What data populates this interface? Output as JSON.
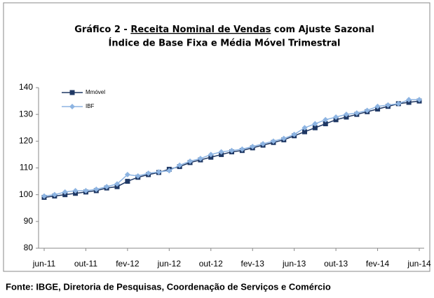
{
  "chart_data": {
    "type": "line",
    "title": "Gráfico 2 -",
    "title_emphasis": "Receita Nominal de Vendas",
    "title_end": "com Ajuste Sazonal",
    "subtitle": "Índice de Base Fixa e Média Móvel Trimestral",
    "source": "Fonte: IBGE, Diretoria de Pesquisas, Coordenação de Serviços e Comércio",
    "categories": [
      "jun-11",
      null,
      null,
      null,
      "out-11",
      null,
      null,
      null,
      "fev-12",
      null,
      null,
      null,
      "jun-12",
      null,
      null,
      null,
      "out-12",
      null,
      null,
      null,
      "fev-13",
      null,
      null,
      null,
      "jun-13",
      null,
      null,
      null,
      "out-13",
      null,
      null,
      null,
      "fev-14",
      null,
      null,
      null,
      "jun-14"
    ],
    "series": [
      {
        "name": "Mmóvel",
        "color": "#1f3864",
        "marker": "square",
        "values": [
          99,
          99.5,
          100,
          100.5,
          101,
          101.5,
          102.5,
          103,
          105,
          106.5,
          107.5,
          108.3,
          109.5,
          110.5,
          112,
          113,
          114,
          115,
          116,
          116.5,
          117.5,
          118.5,
          119.5,
          120.5,
          122,
          123.5,
          125,
          126.5,
          128,
          129,
          130,
          131,
          132,
          133,
          134,
          134.5,
          135
        ]
      },
      {
        "name": "IBF",
        "color": "#8db4e2",
        "marker": "diamond",
        "values": [
          99.5,
          100,
          101,
          101.5,
          101.5,
          102,
          103,
          104,
          107.5,
          107,
          108,
          108.5,
          109,
          111,
          112.5,
          113.5,
          115,
          116,
          116.5,
          117,
          118,
          119,
          120,
          121,
          122.5,
          125,
          126.5,
          128,
          129,
          130,
          130.5,
          131.5,
          133,
          133.5,
          134,
          135.5,
          135.5
        ]
      }
    ],
    "ylim": [
      80,
      140
    ],
    "yticks": [
      80,
      90,
      100,
      110,
      120,
      130,
      140
    ],
    "grid": false,
    "legend": "top-left"
  }
}
